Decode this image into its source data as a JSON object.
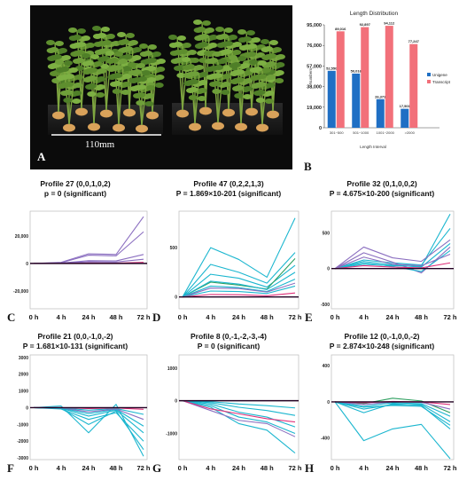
{
  "panels": {
    "A": "A",
    "B": "B",
    "C": "C",
    "D": "D",
    "E": "E",
    "F": "F",
    "G": "G",
    "H": "H"
  },
  "photo": {
    "scale_label": "110mm"
  },
  "colors": {
    "unigene": "#1f6fc4",
    "transcript": "#f2707a",
    "profile_cyan": "#1bb6cf",
    "profile_purple": "#8b6fc0",
    "profile_pink": "#e0307a",
    "profile_green": "#2fa060",
    "zero_line": "#220022"
  },
  "chart_data": [
    {
      "type": "bar",
      "title": "Length Distribution",
      "xlabel": "Length Interval",
      "ylabel": "Numbers",
      "categories": [
        "301~500",
        "501~1000",
        "1001~2000",
        ">2000"
      ],
      "yticks": [
        "0",
        "19,000",
        "38,000",
        "57,000",
        "76,000",
        "95,000"
      ],
      "ylim": [
        0,
        95000
      ],
      "legend": "right",
      "series": [
        {
          "name": "Unigene",
          "values": [
            52550,
            50016,
            26373,
            17501
          ],
          "labels": [
            "52,550",
            "50,016",
            "26,373",
            "17,501"
          ]
        },
        {
          "name": "Transcript",
          "values": [
            89016,
            92897,
            94112,
            77247
          ],
          "labels": [
            "89,016",
            "92,897",
            "94,112",
            "77,247"
          ]
        }
      ]
    },
    {
      "type": "line",
      "panel": "C",
      "title": "Profile 27 (0,0,1,0,2)",
      "subtitle": "p = 0 (significant)",
      "x": [
        "0 h",
        "4 h",
        "24 h",
        "48 h",
        "72 h"
      ],
      "yticks": [
        {
          "v": 20000,
          "t": "20,000"
        },
        {
          "v": 0,
          "t": "0"
        },
        {
          "v": -20000,
          "t": "-20,000"
        }
      ],
      "ylim": [
        -33000,
        38000
      ],
      "series": [
        {
          "color": "purple",
          "values": [
            0,
            800,
            7000,
            6500,
            34000
          ]
        },
        {
          "color": "purple",
          "values": [
            0,
            500,
            6000,
            5500,
            23000
          ]
        },
        {
          "color": "purple",
          "values": [
            0,
            300,
            2000,
            1800,
            6500
          ]
        },
        {
          "color": "purple",
          "values": [
            0,
            200,
            1200,
            1000,
            3000
          ]
        },
        {
          "color": "pink",
          "values": [
            0,
            0,
            300,
            200,
            800
          ]
        }
      ]
    },
    {
      "type": "line",
      "panel": "D",
      "title": "Profile 47 (0,2,2,1,3)",
      "subtitle": "P = 1.869×10-201 (significant)",
      "x": [
        "0 h",
        "4 h",
        "24 h",
        "48 h",
        "72 h"
      ],
      "yticks": [
        {
          "v": 500,
          "t": "500"
        },
        {
          "v": 0,
          "t": "0"
        }
      ],
      "ylim": [
        -120,
        870
      ],
      "series": [
        {
          "color": "cyan",
          "values": [
            0,
            500,
            380,
            200,
            800
          ]
        },
        {
          "color": "cyan",
          "values": [
            0,
            330,
            250,
            140,
            450
          ]
        },
        {
          "color": "cyan",
          "values": [
            0,
            230,
            190,
            100,
            320
          ]
        },
        {
          "color": "green",
          "values": [
            0,
            150,
            120,
            80,
            390
          ]
        },
        {
          "color": "cyan",
          "values": [
            0,
            160,
            130,
            75,
            250
          ]
        },
        {
          "color": "cyan",
          "values": [
            0,
            110,
            95,
            55,
            180
          ]
        },
        {
          "color": "purple",
          "values": [
            0,
            90,
            85,
            50,
            140
          ]
        },
        {
          "color": "cyan",
          "values": [
            0,
            60,
            55,
            35,
            110
          ]
        },
        {
          "color": "pink",
          "values": [
            0,
            25,
            22,
            12,
            40
          ]
        }
      ]
    },
    {
      "type": "line",
      "panel": "E",
      "title": "Profile 32 (0,1,0,0,2)",
      "subtitle": "P = 4.675×10-200 (significant)",
      "x": [
        "0 h",
        "4 h",
        "24 h",
        "48 h",
        "72 h"
      ],
      "yticks": [
        {
          "v": 500,
          "t": "500"
        },
        {
          "v": 0,
          "t": "0"
        },
        {
          "v": -500,
          "t": "-500"
        }
      ],
      "ylim": [
        -560,
        800
      ],
      "series": [
        {
          "color": "cyan",
          "values": [
            0,
            60,
            40,
            30,
            760
          ]
        },
        {
          "color": "cyan",
          "values": [
            0,
            120,
            80,
            50,
            560
          ]
        },
        {
          "color": "purple",
          "values": [
            0,
            300,
            150,
            100,
            400
          ]
        },
        {
          "color": "purple",
          "values": [
            0,
            220,
            90,
            -60,
            300
          ]
        },
        {
          "color": "cyan",
          "values": [
            0,
            100,
            50,
            20,
            350
          ]
        },
        {
          "color": "cyan",
          "values": [
            0,
            80,
            30,
            -40,
            250
          ]
        },
        {
          "color": "purple",
          "values": [
            0,
            160,
            60,
            40,
            200
          ]
        },
        {
          "color": "pink",
          "values": [
            0,
            40,
            20,
            10,
            80
          ]
        }
      ]
    },
    {
      "type": "line",
      "panel": "F",
      "title": "Profile 21 (0,0,-1,0,-2)",
      "subtitle": "P = 1.681×10-131 (significant)",
      "x": [
        "0 h",
        "4 h",
        "24 h",
        "48 h",
        "72 h"
      ],
      "yticks": [
        {
          "v": 3000,
          "t": "3000"
        },
        {
          "v": 2000,
          "t": "2000"
        },
        {
          "v": 1000,
          "t": "1000"
        },
        {
          "v": 0,
          "t": "0"
        },
        {
          "v": -1000,
          "t": "-1000"
        },
        {
          "v": -2000,
          "t": "-2000"
        },
        {
          "v": -3000,
          "t": "-3000"
        }
      ],
      "ylim": [
        -3100,
        3150
      ],
      "series": [
        {
          "color": "cyan",
          "values": [
            0,
            100,
            -1500,
            200,
            -2900
          ]
        },
        {
          "color": "cyan",
          "values": [
            0,
            -50,
            -1000,
            -200,
            -2500
          ]
        },
        {
          "color": "cyan",
          "values": [
            0,
            -80,
            -700,
            -300,
            -2000
          ]
        },
        {
          "color": "cyan",
          "values": [
            0,
            -30,
            -500,
            -150,
            -1500
          ]
        },
        {
          "color": "cyan",
          "values": [
            0,
            -20,
            -350,
            -100,
            -1100
          ]
        },
        {
          "color": "purple",
          "values": [
            0,
            -10,
            -250,
            -80,
            -700
          ]
        },
        {
          "color": "cyan",
          "values": [
            0,
            -5,
            -150,
            -50,
            -400
          ]
        },
        {
          "color": "pink",
          "values": [
            0,
            0,
            -50,
            -20,
            -100
          ]
        }
      ]
    },
    {
      "type": "line",
      "panel": "G",
      "title": "Profile 8 (0,-1,-2,-3,-4)",
      "subtitle": "P = 0 (significant)",
      "x": [
        "0 h",
        "4 h",
        "24 h",
        "48 h",
        "72 h"
      ],
      "yticks": [
        {
          "v": 1000,
          "t": "1000"
        },
        {
          "v": 0,
          "t": "0"
        },
        {
          "v": -1000,
          "t": "-1000"
        }
      ],
      "ylim": [
        -1800,
        1400
      ],
      "series": [
        {
          "color": "cyan",
          "values": [
            0,
            -200,
            -700,
            -900,
            -1600
          ]
        },
        {
          "color": "purple",
          "values": [
            0,
            -300,
            -600,
            -700,
            -1100
          ]
        },
        {
          "color": "cyan",
          "values": [
            0,
            -150,
            -500,
            -650,
            -1000
          ]
        },
        {
          "color": "cyan",
          "values": [
            0,
            -100,
            -350,
            -500,
            -800
          ]
        },
        {
          "color": "pink",
          "values": [
            0,
            -250,
            -400,
            -550,
            -650
          ]
        },
        {
          "color": "cyan",
          "values": [
            0,
            -60,
            -200,
            -300,
            -450
          ]
        },
        {
          "color": "cyan",
          "values": [
            0,
            -30,
            -100,
            -150,
            -220
          ]
        }
      ]
    },
    {
      "type": "line",
      "panel": "H",
      "title": "Profile 12 (0,-1,0,0,-2)",
      "subtitle": "P = 2.874×10-248 (significant)",
      "x": [
        "0 h",
        "4 h",
        "24 h",
        "48 h",
        "72 h"
      ],
      "yticks": [
        {
          "v": 400,
          "t": "400"
        },
        {
          "v": 0,
          "t": "0"
        },
        {
          "v": -400,
          "t": "-400"
        }
      ],
      "ylim": [
        -640,
        520
      ],
      "series": [
        {
          "color": "cyan",
          "values": [
            0,
            -430,
            -300,
            -250,
            -630
          ]
        },
        {
          "color": "cyan",
          "values": [
            0,
            -120,
            -20,
            -40,
            -300
          ]
        },
        {
          "color": "green",
          "values": [
            0,
            -20,
            40,
            10,
            -120
          ]
        },
        {
          "color": "cyan",
          "values": [
            0,
            -80,
            -30,
            -30,
            -220
          ]
        },
        {
          "color": "cyan",
          "values": [
            0,
            -50,
            -10,
            -20,
            -160
          ]
        },
        {
          "color": "purple",
          "values": [
            0,
            -30,
            0,
            -5,
            -80
          ]
        },
        {
          "color": "cyan",
          "values": [
            0,
            -60,
            -40,
            -50,
            -260
          ]
        },
        {
          "color": "pink",
          "values": [
            0,
            -10,
            5,
            0,
            -30
          ]
        }
      ]
    }
  ]
}
